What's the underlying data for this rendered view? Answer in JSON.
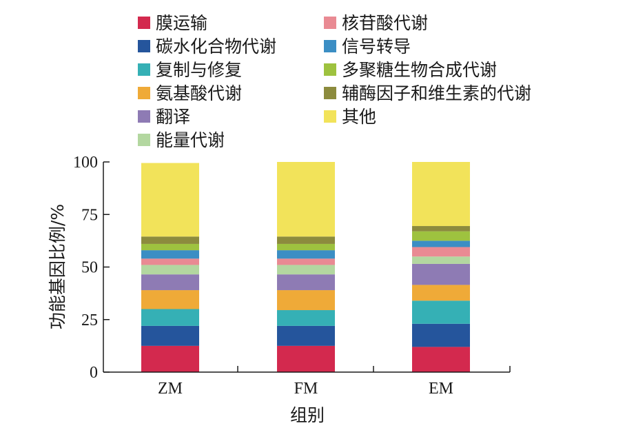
{
  "chart_data": {
    "type": "bar",
    "stacked": true,
    "categories": [
      "ZM",
      "FM",
      "EM"
    ],
    "xlabel": "组别",
    "ylabel": "功能基因比例/%",
    "ylim": [
      0,
      100
    ],
    "yticks": [
      "0",
      "25",
      "50",
      "75",
      "100"
    ],
    "legend_position": "top",
    "series": [
      {
        "name": "膜运输",
        "color": "#d3294e",
        "values": [
          12.5,
          12.5,
          12.0
        ]
      },
      {
        "name": "碳水化合物代谢",
        "color": "#25559c",
        "values": [
          9.5,
          9.5,
          11.0
        ]
      },
      {
        "name": "复制与修复",
        "color": "#35b0b5",
        "values": [
          8.0,
          7.5,
          11.0
        ]
      },
      {
        "name": "氨基酸代谢",
        "color": "#efaa38",
        "values": [
          9.0,
          9.5,
          7.5
        ]
      },
      {
        "name": "翻译",
        "color": "#8e7bb4",
        "values": [
          7.5,
          7.5,
          10.0
        ]
      },
      {
        "name": "能量代谢",
        "color": "#b3d7a0",
        "values": [
          4.5,
          4.5,
          3.5
        ]
      },
      {
        "name": "核苷酸代谢",
        "color": "#e98a93",
        "values": [
          3.0,
          3.0,
          4.5
        ]
      },
      {
        "name": "信号转导",
        "color": "#3b8ec4",
        "values": [
          4.0,
          4.0,
          3.0
        ]
      },
      {
        "name": "多聚糖生物合成代谢",
        "color": "#9ec23f",
        "values": [
          3.0,
          3.0,
          4.5
        ]
      },
      {
        "name": "辅酶因子和维生素的代谢",
        "color": "#8c8b3d",
        "values": [
          3.5,
          3.5,
          2.5
        ]
      },
      {
        "name": "其他",
        "color": "#f2e35a",
        "values": [
          35.0,
          35.5,
          30.5
        ]
      }
    ]
  }
}
